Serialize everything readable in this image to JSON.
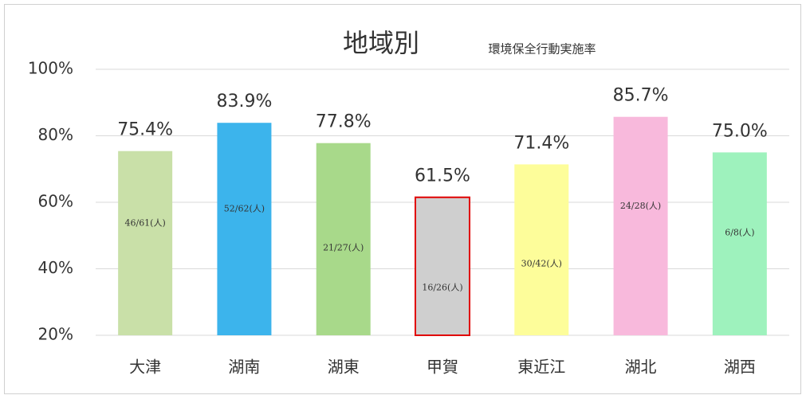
{
  "chart_data": {
    "type": "bar",
    "title": "地域別",
    "subtitle": "環境保全行動実施率",
    "categories": [
      "大津",
      "湖南",
      "湖東",
      "甲賀",
      "東近江",
      "湖北",
      "湖西"
    ],
    "values": [
      75.4,
      83.9,
      77.8,
      61.5,
      71.4,
      85.7,
      75.0
    ],
    "value_labels": [
      "75.4%",
      "83.9%",
      "77.8%",
      "61.5%",
      "71.4%",
      "85.7%",
      "75.0%"
    ],
    "annotations": [
      "46/61(人)",
      "52/62(人)",
      "21/27(人)",
      "16/26(人)",
      "30/42(人)",
      "24/28(人)",
      "6/8(人)"
    ],
    "colors": [
      "#c9e0a8",
      "#3cb4ec",
      "#a8d98a",
      "#cfcfcf",
      "#fdfd9a",
      "#f8b9dc",
      "#9ef2bd"
    ],
    "edgecolors": [
      null,
      null,
      null,
      "#e00000",
      null,
      null,
      null
    ],
    "ylim": [
      20,
      100
    ],
    "yticks": [
      {
        "value": 20,
        "label": "20%"
      },
      {
        "value": 40,
        "label": "40%"
      },
      {
        "value": 60,
        "label": "60%"
      },
      {
        "value": 80,
        "label": "80%"
      },
      {
        "value": 100,
        "label": "100%"
      }
    ],
    "grid": true
  }
}
